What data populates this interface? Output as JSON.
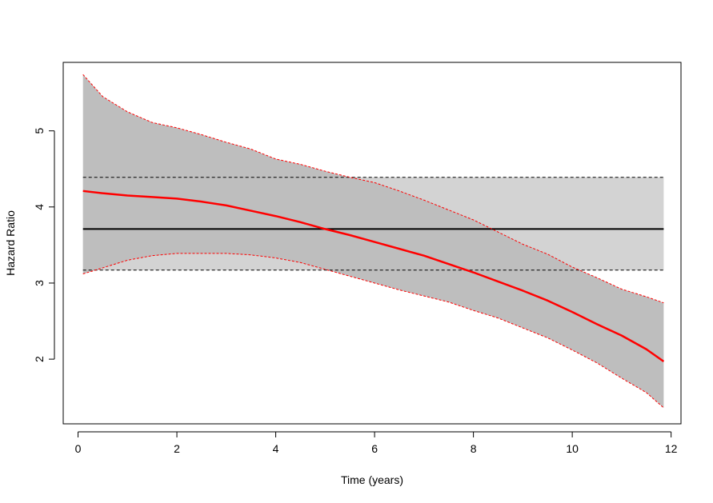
{
  "chart_data": {
    "type": "line",
    "title": "",
    "xlabel": "Time (years)",
    "ylabel": "Hazard Ratio",
    "xlim": [
      -0.3,
      12.2
    ],
    "ylim": [
      1.15,
      5.9
    ],
    "xticks": [
      0,
      2,
      4,
      6,
      8,
      10,
      12
    ],
    "yticks": [
      2,
      3,
      4,
      5
    ],
    "grid": false,
    "constant_estimate": {
      "hr": 3.71,
      "lower": 3.17,
      "upper": 4.39,
      "x_range": [
        0.1,
        11.85
      ]
    },
    "time_varying_estimate": {
      "x": [
        0.1,
        0.5,
        1.0,
        1.5,
        2.0,
        2.5,
        3.0,
        3.5,
        4.0,
        4.5,
        5.0,
        5.5,
        6.0,
        6.5,
        7.0,
        7.5,
        8.0,
        8.5,
        9.0,
        9.5,
        10.0,
        10.5,
        11.0,
        11.5,
        11.85
      ],
      "hr": [
        4.21,
        4.18,
        4.15,
        4.13,
        4.11,
        4.07,
        4.02,
        3.95,
        3.88,
        3.8,
        3.71,
        3.63,
        3.54,
        3.45,
        3.36,
        3.25,
        3.14,
        3.02,
        2.9,
        2.77,
        2.62,
        2.46,
        2.31,
        2.13,
        1.97
      ],
      "lower": [
        3.12,
        3.2,
        3.3,
        3.36,
        3.39,
        3.39,
        3.39,
        3.37,
        3.33,
        3.27,
        3.18,
        3.09,
        3.0,
        2.91,
        2.83,
        2.75,
        2.64,
        2.54,
        2.41,
        2.28,
        2.12,
        1.95,
        1.75,
        1.56,
        1.36
      ],
      "upper": [
        5.74,
        5.45,
        5.25,
        5.11,
        5.04,
        4.95,
        4.85,
        4.76,
        4.63,
        4.56,
        4.47,
        4.39,
        4.32,
        4.21,
        4.09,
        3.96,
        3.83,
        3.67,
        3.51,
        3.38,
        3.21,
        3.07,
        2.92,
        2.82,
        2.74
      ]
    },
    "colors": {
      "time_varying_line": "#ff0000",
      "time_varying_band": "#bebebe",
      "constant_line": "#000000",
      "constant_band": "#d3d3d3",
      "axis": "#000000"
    }
  }
}
